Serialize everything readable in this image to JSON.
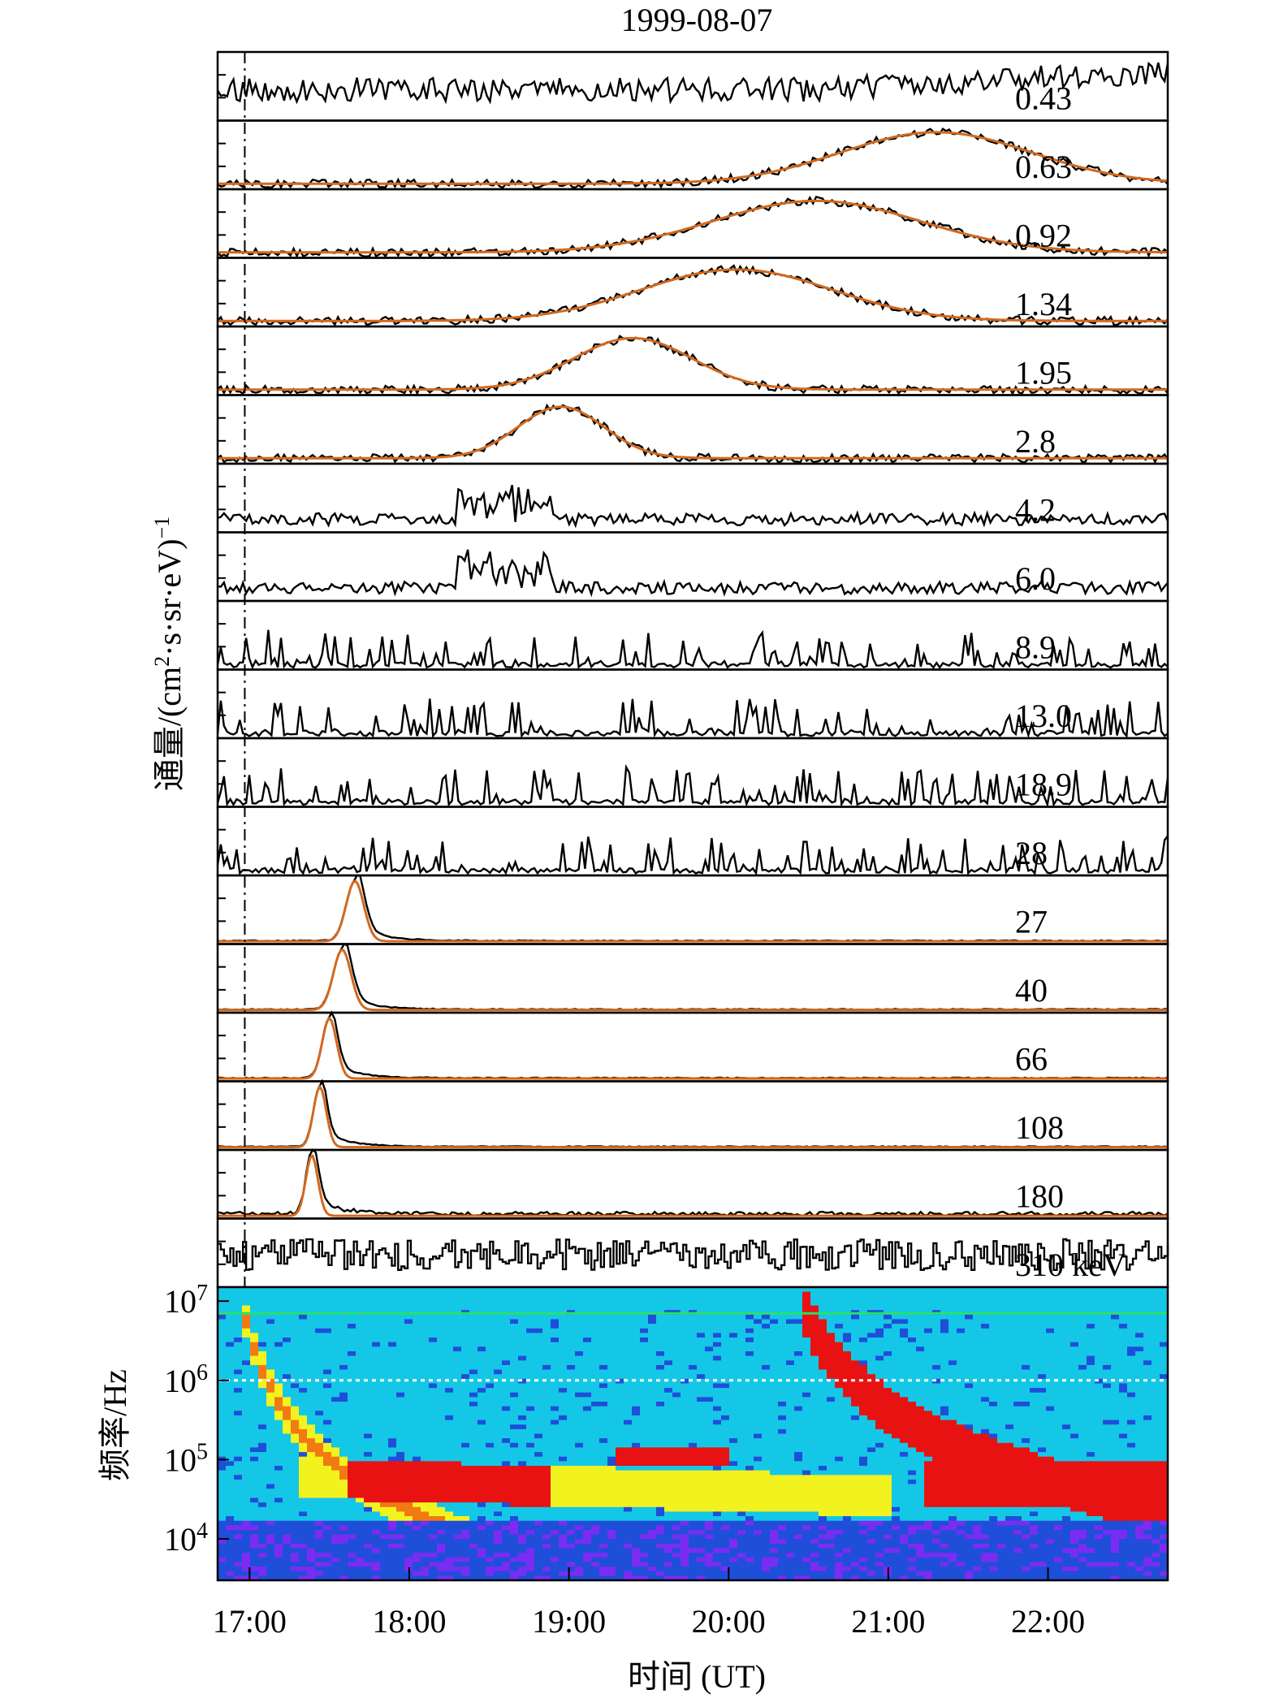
{
  "chart_data": {
    "type": "line",
    "title": "1999-08-07",
    "ylabel_flux": "通量/(cm²·s·sr·eV)⁻¹",
    "ylabel_flux_parts": {
      "a": "通量/(cm",
      "b": "2",
      "c": "·s·sr·eV)",
      "d": "−1"
    },
    "xlabel": "时间 (UT)",
    "xlim": [
      16.8,
      22.75
    ],
    "x_ticks": [
      17,
      18,
      19,
      20,
      21,
      22
    ],
    "x_tick_labels": [
      "17:00",
      "18:00",
      "19:00",
      "20:00",
      "21:00",
      "22:00"
    ],
    "event_marker_x": 16.97,
    "gaussian_color": "#d2691e",
    "trace_color": "#000000",
    "panels": [
      {
        "label": "0.43",
        "kind": "noisy",
        "fit": null,
        "seed": 11
      },
      {
        "label": "0.63",
        "kind": "broad",
        "fit": {
          "center": 21.3,
          "sigma": 0.6
        },
        "seed": 12
      },
      {
        "label": "0.92",
        "kind": "broad",
        "fit": {
          "center": 20.55,
          "sigma": 0.65
        },
        "seed": 13
      },
      {
        "label": "1.34",
        "kind": "broad",
        "fit": {
          "center": 20.05,
          "sigma": 0.6
        },
        "seed": 14
      },
      {
        "label": "1.95",
        "kind": "broad",
        "fit": {
          "center": 19.4,
          "sigma": 0.37
        },
        "seed": 15
      },
      {
        "label": "2.8",
        "kind": "broad",
        "fit": {
          "center": 18.95,
          "sigma": 0.27
        },
        "seed": 16
      },
      {
        "label": "4.2",
        "kind": "spiky",
        "fit": null,
        "seed": 17
      },
      {
        "label": "6.0",
        "kind": "spiky",
        "fit": null,
        "seed": 18
      },
      {
        "label": "8.9",
        "kind": "sparse",
        "fit": null,
        "seed": 19
      },
      {
        "label": "13.0",
        "kind": "sparse",
        "fit": null,
        "seed": 20
      },
      {
        "label": "18.9",
        "kind": "sparse",
        "fit": null,
        "seed": 21
      },
      {
        "label": "28",
        "kind": "sparse",
        "fit": null,
        "seed": 22
      },
      {
        "label": "27",
        "kind": "sharp",
        "fit": {
          "center": 17.66,
          "sigma": 0.055
        },
        "seed": 23
      },
      {
        "label": "40",
        "kind": "sharp",
        "fit": {
          "center": 17.58,
          "sigma": 0.055
        },
        "seed": 24
      },
      {
        "label": "66",
        "kind": "sharp",
        "fit": {
          "center": 17.5,
          "sigma": 0.045
        },
        "seed": 25
      },
      {
        "label": "108",
        "kind": "sharp",
        "fit": {
          "center": 17.44,
          "sigma": 0.04
        },
        "seed": 26
      },
      {
        "label": "180",
        "kind": "sharp_noisy",
        "fit": {
          "center": 17.39,
          "sigma": 0.038
        },
        "seed": 27
      },
      {
        "label": "310 keV",
        "kind": "step",
        "fit": null,
        "seed": 28
      }
    ],
    "spectrogram": {
      "ylabel": "频率/Hz",
      "y_scale": "log",
      "ylim": [
        3000,
        15000000
      ],
      "y_ticks": [
        {
          "base": "10",
          "exp": "7",
          "value": 10000000
        },
        {
          "base": "10",
          "exp": "6",
          "value": 1000000
        },
        {
          "base": "10",
          "exp": "5",
          "value": 100000
        },
        {
          "base": "10",
          "exp": "4",
          "value": 10000
        }
      ],
      "dotted_line_freq": 1000000,
      "horizontal_line_freq": 7000000,
      "colormap": "rainbow"
    }
  }
}
